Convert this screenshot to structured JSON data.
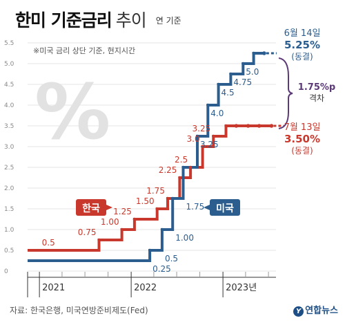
{
  "header": {
    "title": "한미 기준금리",
    "subtitle": "추이",
    "unit": "연 기준"
  },
  "chart_data": {
    "type": "line",
    "note": "※미국 금리 상단 기준, 현지시간",
    "y_ticks": [
      "0",
      "0.5",
      "1.0",
      "1.5",
      "2.0",
      "2.5",
      "3.0",
      "3.5",
      "4.0",
      "4.5",
      "5.0",
      "5.5"
    ],
    "ylim": [
      0,
      5.5
    ],
    "xlim": [
      "2020-11-15",
      "2023-07-31"
    ],
    "x_year_labels": [
      {
        "date": "2021-01-01",
        "label": "2021"
      },
      {
        "date": "2022-01-01",
        "label": "2022"
      },
      {
        "date": "2023-01-01",
        "label": "2023년"
      }
    ],
    "series": [
      {
        "name": "한국",
        "color": "#c8382c",
        "points": [
          {
            "date": "2020-11-15",
            "value": 0.5
          },
          {
            "date": "2021-08-26",
            "value": 0.75
          },
          {
            "date": "2021-11-25",
            "value": 1.0
          },
          {
            "date": "2022-01-14",
            "value": 1.25
          },
          {
            "date": "2022-04-14",
            "value": 1.5
          },
          {
            "date": "2022-05-26",
            "value": 1.75
          },
          {
            "date": "2022-07-13",
            "value": 2.25
          },
          {
            "date": "2022-08-25",
            "value": 2.5
          },
          {
            "date": "2022-10-12",
            "value": 3.0
          },
          {
            "date": "2022-11-24",
            "value": 3.25
          },
          {
            "date": "2023-01-13",
            "value": 3.5
          }
        ],
        "end_date": "2023-07-13",
        "hold_markers": [
          "2023-02-23",
          "2023-04-11",
          "2023-05-25",
          "2023-07-13"
        ],
        "labels": [
          {
            "date": "2021-03-15",
            "value": 0.5,
            "text": "0.5"
          },
          {
            "date": "2021-08-26",
            "value": 0.75,
            "text": "0.75"
          },
          {
            "date": "2021-11-25",
            "value": 1.0,
            "text": "1.00"
          },
          {
            "date": "2022-01-14",
            "value": 1.25,
            "text": "1.25"
          },
          {
            "date": "2022-04-14",
            "value": 1.5,
            "text": "1.50"
          },
          {
            "date": "2022-05-26",
            "value": 1.75,
            "text": "1.75"
          },
          {
            "date": "2022-07-13",
            "value": 2.25,
            "text": "2.25"
          },
          {
            "date": "2022-08-25",
            "value": 2.5,
            "text": "2.5"
          },
          {
            "date": "2022-10-12",
            "value": 3.0,
            "text": "3.0"
          },
          {
            "date": "2022-11-24",
            "value": 3.25,
            "text": "3.25"
          }
        ]
      },
      {
        "name": "미국",
        "color": "#2b5d8e",
        "points": [
          {
            "date": "2020-11-15",
            "value": 0.25
          },
          {
            "date": "2022-03-16",
            "value": 0.5
          },
          {
            "date": "2022-05-04",
            "value": 1.0
          },
          {
            "date": "2022-06-15",
            "value": 1.75
          },
          {
            "date": "2022-07-27",
            "value": 2.5
          },
          {
            "date": "2022-09-21",
            "value": 3.25
          },
          {
            "date": "2022-11-02",
            "value": 4.0
          },
          {
            "date": "2022-12-14",
            "value": 4.5
          },
          {
            "date": "2023-02-01",
            "value": 4.75
          },
          {
            "date": "2023-03-22",
            "value": 5.0
          },
          {
            "date": "2023-05-03",
            "value": 5.25
          }
        ],
        "end_date": "2023-06-14",
        "hold_markers": [
          "2023-06-14"
        ],
        "labels": [
          {
            "date": "2022-03-16",
            "value": 0.25,
            "text": "0.25"
          },
          {
            "date": "2022-05-04",
            "value": 0.5,
            "text": "0.5"
          },
          {
            "date": "2022-06-15",
            "value": 1.0,
            "text": "1.00"
          },
          {
            "date": "2022-07-27",
            "value": 1.75,
            "text": "1.75"
          },
          {
            "date": "2022-09-21",
            "value": 3.25,
            "text": "3.25"
          },
          {
            "date": "2022-11-02",
            "value": 4.0,
            "text": "4.0"
          },
          {
            "date": "2022-12-14",
            "value": 4.5,
            "text": "4.5"
          },
          {
            "date": "2023-02-01",
            "value": 4.75,
            "text": "4.75"
          },
          {
            "date": "2023-03-22",
            "value": 5.0,
            "text": "5.0"
          }
        ]
      }
    ],
    "annotations": {
      "us_date": "6월 14일",
      "us_value": "5.25%",
      "us_status": "(동결)",
      "kor_date": "7월 13일",
      "kor_value": "3.50%",
      "kor_status": "(동결)",
      "gap_value": "1.75%p",
      "gap_label": "격차"
    }
  },
  "footer": {
    "source": "자료: 한국은행, 미국연방준비제도(Fed)",
    "logo": "연합뉴스",
    "logo_mark": "Y"
  },
  "colors": {
    "korea": "#c8382c",
    "us": "#2b5d8e",
    "gap_brace": "#5c3a78"
  }
}
